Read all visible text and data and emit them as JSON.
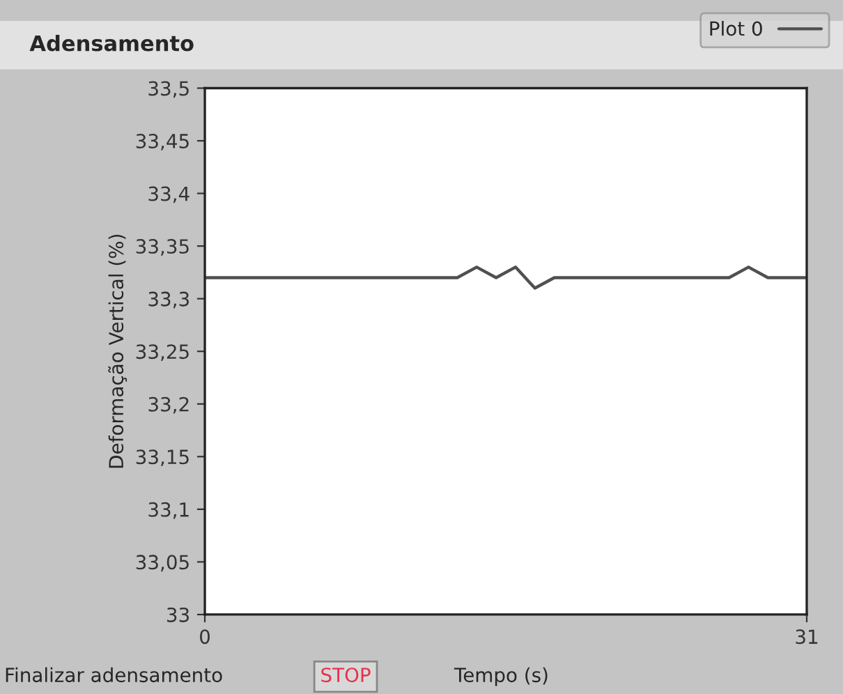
{
  "chart_data": {
    "type": "line",
    "title": "Adensamento",
    "xlabel": "Tempo (s)",
    "ylabel": "Deformação Vertical (%)",
    "annotations": [
      "Finalizar adensamento",
      "STOP"
    ],
    "x": [
      0,
      13,
      14,
      15,
      16,
      17,
      18,
      27,
      28,
      29,
      31
    ],
    "series": [
      {
        "name": "Plot 0",
        "color": "#505050",
        "values": [
          33.32,
          33.32,
          33.33,
          33.32,
          33.33,
          33.31,
          33.32,
          33.32,
          33.33,
          33.32,
          33.32
        ]
      }
    ],
    "xlim": [
      0,
      31
    ],
    "xticks": [
      0,
      31
    ],
    "ylim": [
      33,
      33.5
    ],
    "yticks": [
      {
        "value": 33,
        "label": "33"
      },
      {
        "value": 33.05,
        "label": "33,05"
      },
      {
        "value": 33.1,
        "label": "33,1"
      },
      {
        "value": 33.15,
        "label": "33,15"
      },
      {
        "value": 33.2,
        "label": "33,2"
      },
      {
        "value": 33.25,
        "label": "33,25"
      },
      {
        "value": 33.3,
        "label": "33,3"
      },
      {
        "value": 33.35,
        "label": "33,35"
      },
      {
        "value": 33.4,
        "label": "33,4"
      },
      {
        "value": 33.45,
        "label": "33,45"
      },
      {
        "value": 33.5,
        "label": "33,5"
      }
    ],
    "grid": false,
    "legend": "top right",
    "marker": "none",
    "line_style": "solid"
  }
}
